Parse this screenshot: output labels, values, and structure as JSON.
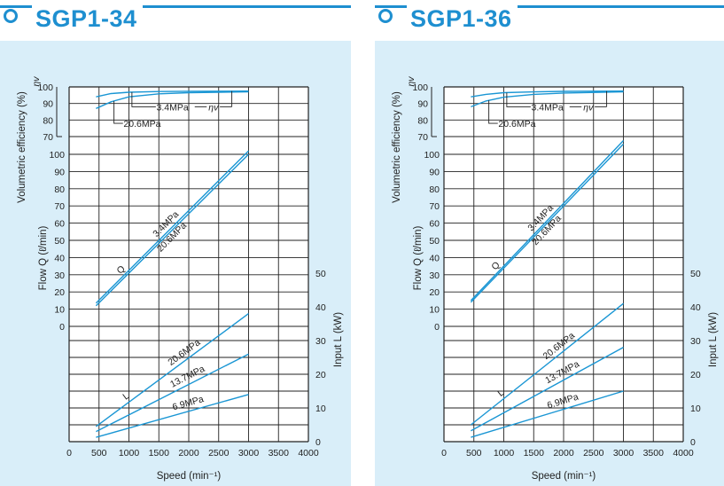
{
  "chart_data": [
    {
      "type": "line",
      "title": "SGP1-34",
      "xlabel": "Speed (min⁻¹)",
      "xticks": [
        0,
        500,
        1000,
        1500,
        2000,
        2500,
        3000,
        3500,
        4000
      ],
      "xlim": [
        0,
        4000
      ],
      "efficiency_axis": {
        "label": "Volumetric efficiency (%)",
        "ticks": [
          100,
          90,
          80,
          70
        ],
        "ylim": [
          70,
          100
        ],
        "curve_label": "ηv"
      },
      "flow_axis": {
        "label": "Flow Q (ℓ/min)",
        "ticks": [
          100,
          90,
          80,
          70,
          60,
          50,
          40,
          30,
          20,
          10,
          0
        ],
        "ylim": [
          0,
          100
        ],
        "curve_label": "Q"
      },
      "power_axis": {
        "label": "Input L (kW)",
        "ticks": [
          50,
          40,
          30,
          20,
          10,
          0
        ],
        "ylim": [
          0,
          50
        ],
        "curve_label": "L"
      },
      "efficiency_series": [
        {
          "name": "3.4MPa",
          "x": [
            450,
            700,
            1000,
            1500,
            2000,
            3000
          ],
          "y": [
            94,
            96,
            96.8,
            97.2,
            97.4,
            97.5
          ]
        },
        {
          "name": "20.6MPa",
          "x": [
            450,
            700,
            1000,
            1500,
            2000,
            3000
          ],
          "y": [
            87,
            91,
            94,
            95.8,
            96.5,
            97
          ]
        }
      ],
      "flow_series": [
        {
          "name": "3.4MPa",
          "x": [
            450,
            3000
          ],
          "y": [
            13.5,
            102
          ]
        },
        {
          "name": "20.6MPa",
          "x": [
            450,
            3000
          ],
          "y": [
            12,
            100
          ]
        }
      ],
      "power_series": [
        {
          "name": "20.6MPa",
          "x": [
            450,
            3000
          ],
          "y": [
            4.5,
            38
          ]
        },
        {
          "name": "13.7MPa",
          "x": [
            450,
            3000
          ],
          "y": [
            3,
            26
          ]
        },
        {
          "name": "6.9MPa",
          "x": [
            450,
            3000
          ],
          "y": [
            1.3,
            14
          ]
        }
      ]
    },
    {
      "type": "line",
      "title": "SGP1-36",
      "xlabel": "Speed (min⁻¹)",
      "xticks": [
        0,
        500,
        1000,
        1500,
        2000,
        2500,
        3000,
        3500,
        4000
      ],
      "xlim": [
        0,
        4000
      ],
      "efficiency_axis": {
        "label": "Volumetric efficiency (%)",
        "ticks": [
          100,
          90,
          80,
          70
        ],
        "ylim": [
          70,
          100
        ],
        "curve_label": "ηv"
      },
      "flow_axis": {
        "label": "Flow Q (ℓ/min)",
        "ticks": [
          100,
          90,
          80,
          70,
          60,
          50,
          40,
          30,
          20,
          10,
          0
        ],
        "ylim": [
          0,
          100
        ],
        "curve_label": "Q"
      },
      "power_axis": {
        "label": "Input L (kW)",
        "ticks": [
          50,
          40,
          30,
          20,
          10,
          0
        ],
        "ylim": [
          0,
          50
        ],
        "curve_label": "L"
      },
      "efficiency_series": [
        {
          "name": "3.4MPa",
          "x": [
            450,
            700,
            1000,
            1500,
            2000,
            3000
          ],
          "y": [
            94,
            95.5,
            96.5,
            97,
            97.3,
            97.5
          ]
        },
        {
          "name": "20.6MPa",
          "x": [
            450,
            700,
            1000,
            1500,
            2000,
            3000
          ],
          "y": [
            88,
            91.5,
            93.8,
            95.5,
            96.3,
            97
          ]
        }
      ],
      "flow_series": [
        {
          "name": "3.4MPa",
          "x": [
            450,
            3000
          ],
          "y": [
            15,
            108
          ]
        },
        {
          "name": "20.6MPa",
          "x": [
            450,
            3000
          ],
          "y": [
            14,
            106
          ]
        }
      ],
      "power_series": [
        {
          "name": "20.6MPa",
          "x": [
            450,
            3000
          ],
          "y": [
            5,
            41
          ]
        },
        {
          "name": "13.7MPa",
          "x": [
            450,
            3000
          ],
          "y": [
            3.2,
            28
          ]
        },
        {
          "name": "6.9MPa",
          "x": [
            450,
            3000
          ],
          "y": [
            1.3,
            15
          ]
        }
      ]
    }
  ]
}
